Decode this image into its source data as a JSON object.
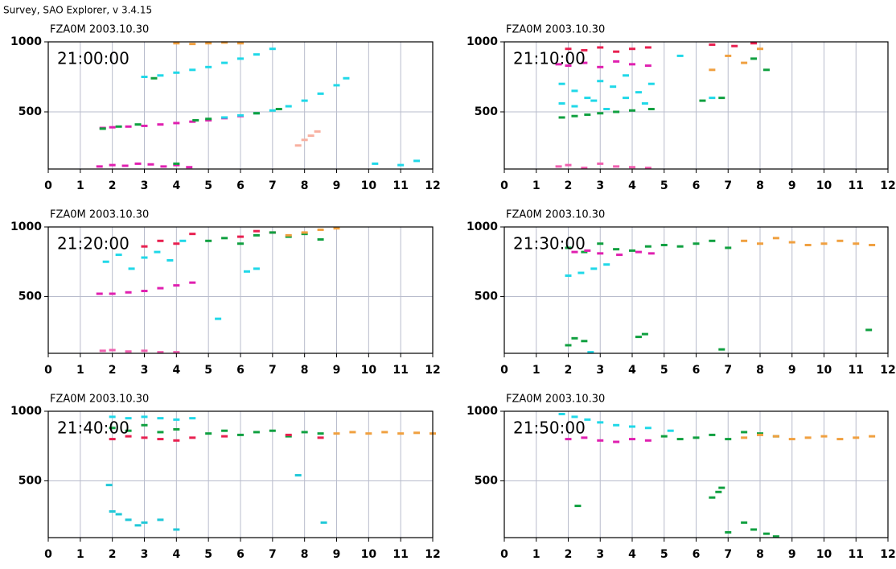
{
  "header": {
    "title": "Survey, SAO Explorer, v 3.4.15"
  },
  "chart_data": [
    {
      "type": "scatter",
      "title": "FZA0M 2003.10.30",
      "annotation": "21:00:00",
      "xlim": [
        0,
        12
      ],
      "ylim": [
        92,
        1000
      ],
      "xticks": [
        0,
        1,
        2,
        3,
        4,
        5,
        6,
        7,
        8,
        9,
        10,
        11,
        12
      ],
      "yticks": [
        500,
        1000
      ],
      "grid": true,
      "series": [
        {
          "color": "#e020b0",
          "x": [
            1.7,
            2,
            2.5,
            3,
            3.5,
            4,
            4.5,
            5,
            5.5,
            6
          ],
          "values": [
            385,
            390,
            395,
            400,
            410,
            420,
            430,
            440,
            455,
            470
          ]
        },
        {
          "color": "#20d8e8",
          "x": [
            5.5,
            6,
            6.5,
            7,
            7.5,
            8,
            8.5,
            9,
            9.3
          ],
          "values": [
            460,
            475,
            490,
            510,
            540,
            580,
            630,
            690,
            740
          ]
        },
        {
          "color": "#20d8e8",
          "x": [
            3,
            3.5,
            4,
            4.5,
            5,
            5.5,
            6,
            6.5,
            7
          ],
          "values": [
            750,
            760,
            780,
            800,
            820,
            850,
            880,
            910,
            950
          ]
        },
        {
          "color": "#e020b0",
          "x": [
            1.6,
            2,
            2.4,
            2.8,
            3.2,
            3.6,
            4,
            4.4
          ],
          "values": [
            110,
            120,
            115,
            130,
            125,
            110,
            120,
            105
          ]
        },
        {
          "color": "#10a040",
          "x": [
            1.7,
            2.2,
            2.8,
            3.3,
            4,
            4.6,
            5,
            6.5,
            7.2
          ],
          "values": [
            380,
            395,
            410,
            740,
            130,
            440,
            450,
            490,
            520
          ]
        },
        {
          "color": "#f8b0a0",
          "x": [
            7.8,
            8,
            8.2,
            8.4
          ],
          "values": [
            260,
            300,
            330,
            360
          ]
        },
        {
          "color": "#20d8e8",
          "x": [
            10.2,
            11,
            11.5
          ],
          "values": [
            130,
            120,
            150
          ]
        },
        {
          "color": "#f0a040",
          "x": [
            4,
            4.5,
            5,
            5.5,
            6
          ],
          "values": [
            990,
            985,
            990,
            995,
            990
          ]
        }
      ]
    },
    {
      "type": "scatter",
      "title": "FZA0M 2003.10.30",
      "annotation": "21:10:00",
      "xlim": [
        0,
        12
      ],
      "ylim": [
        92,
        1000
      ],
      "xticks": [
        0,
        1,
        2,
        3,
        4,
        5,
        6,
        7,
        8,
        9,
        10,
        11,
        12
      ],
      "yticks": [
        500,
        1000
      ],
      "grid": true,
      "series": [
        {
          "color": "#e020b0",
          "x": [
            1.7,
            2,
            2.5,
            3,
            3.5,
            4,
            4.5
          ],
          "values": [
            840,
            830,
            850,
            820,
            860,
            840,
            830
          ]
        },
        {
          "color": "#20d8e8",
          "x": [
            1.8,
            2.2,
            2.6,
            3,
            3.4,
            3.8,
            4.2,
            4.6,
            5.5,
            6.5
          ],
          "values": [
            700,
            650,
            600,
            720,
            680,
            760,
            640,
            700,
            900,
            600
          ]
        },
        {
          "color": "#10a040",
          "x": [
            1.8,
            2.2,
            2.6,
            3,
            3.5,
            4,
            4.6,
            6.2,
            6.8,
            7.8,
            8.2
          ],
          "values": [
            460,
            470,
            480,
            490,
            500,
            510,
            520,
            580,
            600,
            880,
            800
          ]
        },
        {
          "color": "#e82050",
          "x": [
            2,
            2.5,
            3,
            3.5,
            4,
            4.5,
            6.5,
            7.2,
            7.8
          ],
          "values": [
            950,
            940,
            960,
            930,
            950,
            960,
            980,
            970,
            990
          ]
        },
        {
          "color": "#f060b0",
          "x": [
            1.7,
            2,
            2.5,
            3,
            3.5,
            4,
            4.5
          ],
          "values": [
            110,
            120,
            100,
            130,
            110,
            105,
            100
          ]
        },
        {
          "color": "#f0a040",
          "x": [
            6.5,
            7,
            7.5,
            8
          ],
          "values": [
            800,
            900,
            850,
            950
          ]
        },
        {
          "color": "#20d8e8",
          "x": [
            1.8,
            2.2,
            2.8,
            3.2,
            3.8,
            4.4
          ],
          "values": [
            560,
            540,
            580,
            520,
            600,
            560
          ]
        }
      ]
    },
    {
      "type": "scatter",
      "title": "FZA0M 2003.10.30",
      "annotation": "21:20:00",
      "xlim": [
        0,
        12
      ],
      "ylim": [
        92,
        1000
      ],
      "xticks": [
        0,
        1,
        2,
        3,
        4,
        5,
        6,
        7,
        8,
        9,
        10,
        11,
        12
      ],
      "yticks": [
        500,
        1000
      ],
      "grid": true,
      "series": [
        {
          "color": "#20d8e8",
          "x": [
            1.8,
            2.2,
            2.6,
            3,
            3.4,
            3.8,
            4.2
          ],
          "values": [
            750,
            800,
            700,
            780,
            820,
            760,
            900
          ]
        },
        {
          "color": "#e020b0",
          "x": [
            1.6,
            2,
            2.5,
            3,
            3.5,
            4,
            4.5
          ],
          "values": [
            520,
            520,
            530,
            540,
            560,
            580,
            600
          ]
        },
        {
          "color": "#e82050",
          "x": [
            3,
            3.5,
            4,
            4.5,
            6,
            6.5,
            7
          ],
          "values": [
            860,
            900,
            880,
            950,
            930,
            970,
            960
          ]
        },
        {
          "color": "#10a040",
          "x": [
            5,
            5.5,
            6,
            6.5,
            7,
            7.5,
            8,
            8.5
          ],
          "values": [
            900,
            920,
            880,
            940,
            960,
            930,
            950,
            910
          ]
        },
        {
          "color": "#f0a040",
          "x": [
            7.5,
            8,
            8.5,
            9
          ],
          "values": [
            940,
            960,
            980,
            990
          ]
        },
        {
          "color": "#f060b0",
          "x": [
            1.7,
            2,
            2.5,
            3,
            3.5,
            4
          ],
          "values": [
            110,
            115,
            105,
            110,
            100,
            100
          ]
        },
        {
          "color": "#20d8e8",
          "x": [
            5.3,
            6.2,
            6.5
          ],
          "values": [
            340,
            680,
            700
          ]
        }
      ]
    },
    {
      "type": "scatter",
      "title": "FZA0M 2003.10.30",
      "annotation": "21:30:00",
      "xlim": [
        0,
        12
      ],
      "ylim": [
        92,
        1000
      ],
      "xticks": [
        0,
        1,
        2,
        3,
        4,
        5,
        6,
        7,
        8,
        9,
        10,
        11,
        12
      ],
      "yticks": [
        500,
        1000
      ],
      "grid": true,
      "series": [
        {
          "color": "#10a040",
          "x": [
            2,
            2.5,
            3,
            3.5,
            4,
            4.5,
            5,
            5.5,
            6,
            6.5,
            7
          ],
          "values": [
            850,
            820,
            880,
            840,
            830,
            860,
            870,
            860,
            880,
            900,
            850
          ]
        },
        {
          "color": "#f0a040",
          "x": [
            7.5,
            8,
            8.5,
            9,
            9.5,
            10,
            10.5,
            11,
            11.5
          ],
          "values": [
            900,
            880,
            920,
            890,
            870,
            880,
            900,
            880,
            870
          ]
        },
        {
          "color": "#20d8e8",
          "x": [
            2,
            2.4,
            2.8,
            3.2
          ],
          "values": [
            650,
            670,
            700,
            730
          ]
        },
        {
          "color": "#e020b0",
          "x": [
            2.2,
            2.6,
            3,
            3.6,
            4.2,
            4.6
          ],
          "values": [
            820,
            830,
            810,
            800,
            820,
            810
          ]
        },
        {
          "color": "#10a040",
          "x": [
            2,
            2.2,
            2.5,
            4.4,
            4.2,
            11.4,
            6.8
          ],
          "values": [
            150,
            200,
            180,
            230,
            210,
            260,
            120
          ]
        },
        {
          "color": "#20d8e8",
          "x": [
            2.7
          ],
          "values": [
            100
          ]
        }
      ]
    },
    {
      "type": "scatter",
      "title": "FZA0M 2003.10.30",
      "annotation": "21:40:00",
      "xlim": [
        0,
        12
      ],
      "ylim": [
        92,
        1000
      ],
      "xticks": [
        0,
        1,
        2,
        3,
        4,
        5,
        6,
        7,
        8,
        9,
        10,
        11,
        12
      ],
      "yticks": [
        500,
        1000
      ],
      "grid": true,
      "series": [
        {
          "color": "#20d8e8",
          "x": [
            2,
            2.5,
            3,
            3.5,
            4,
            4.5
          ],
          "values": [
            960,
            950,
            960,
            950,
            940,
            950
          ]
        },
        {
          "color": "#10a040",
          "x": [
            2,
            2.5,
            3,
            3.5,
            4,
            5,
            5.5,
            6,
            6.5,
            7,
            7.5,
            8,
            8.5
          ],
          "values": [
            880,
            860,
            900,
            850,
            870,
            840,
            860,
            830,
            850,
            860,
            820,
            850,
            840
          ]
        },
        {
          "color": "#e82050",
          "x": [
            2,
            2.5,
            3,
            3.5,
            4,
            4.5,
            5.5,
            7.5,
            8.5
          ],
          "values": [
            800,
            820,
            810,
            800,
            790,
            810,
            820,
            830,
            810
          ]
        },
        {
          "color": "#f0a040",
          "x": [
            9,
            9.5,
            10,
            10.5,
            11,
            11.5,
            12
          ],
          "values": [
            840,
            850,
            840,
            850,
            840,
            845,
            840
          ]
        },
        {
          "color": "#20c8d8",
          "x": [
            1.9,
            2,
            2.2,
            2.5,
            2.8,
            3,
            3.5,
            4,
            7.8,
            8.6
          ],
          "values": [
            470,
            280,
            260,
            220,
            180,
            200,
            220,
            150,
            540,
            200
          ]
        }
      ]
    },
    {
      "type": "scatter",
      "title": "FZA0M 2003.10.30",
      "annotation": "21:50:00",
      "xlim": [
        0,
        12
      ],
      "ylim": [
        92,
        1000
      ],
      "xticks": [
        0,
        1,
        2,
        3,
        4,
        5,
        6,
        7,
        8,
        9,
        10,
        11,
        12
      ],
      "yticks": [
        500,
        1000
      ],
      "grid": true,
      "series": [
        {
          "color": "#20d8e8",
          "x": [
            1.8,
            2.2,
            2.6,
            3,
            3.5,
            4,
            4.5,
            5.2
          ],
          "values": [
            980,
            960,
            940,
            920,
            900,
            890,
            880,
            860
          ]
        },
        {
          "color": "#e020b0",
          "x": [
            2,
            2.5,
            3,
            3.5,
            4,
            4.5
          ],
          "values": [
            800,
            810,
            790,
            780,
            800,
            790
          ]
        },
        {
          "color": "#10a040",
          "x": [
            5,
            5.5,
            6,
            6.5,
            7,
            7.5,
            8,
            8.5
          ],
          "values": [
            820,
            800,
            810,
            830,
            800,
            850,
            840,
            820
          ]
        },
        {
          "color": "#f0a040",
          "x": [
            7.5,
            8,
            8.5,
            9,
            9.5,
            10,
            10.5,
            11,
            11.5
          ],
          "values": [
            810,
            830,
            820,
            800,
            810,
            820,
            800,
            810,
            820
          ]
        },
        {
          "color": "#10a040",
          "x": [
            6.5,
            6.7,
            6.8,
            7,
            7.5,
            7.8,
            8.2,
            8.5,
            2.3
          ],
          "values": [
            380,
            420,
            450,
            130,
            200,
            150,
            120,
            100,
            320
          ]
        }
      ]
    }
  ]
}
